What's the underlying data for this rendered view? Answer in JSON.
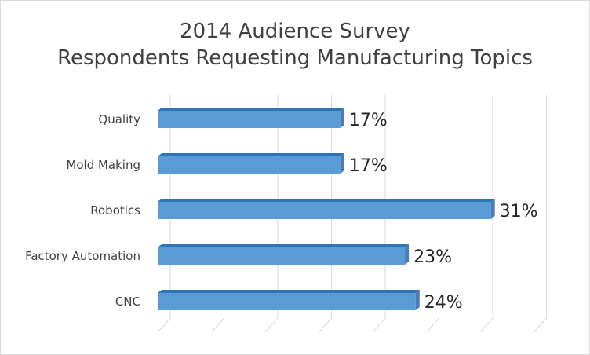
{
  "chart_data": {
    "type": "bar",
    "orientation": "horizontal",
    "title": [
      "2014 Audience Survey",
      "Respondents Requesting Manufacturing Topics"
    ],
    "categories": [
      "Quality",
      "Mold Making",
      "Robotics",
      "Factory Automation",
      "CNC"
    ],
    "values": [
      17,
      17,
      31,
      23,
      24
    ],
    "data_labels": [
      "17%",
      "17%",
      "31%",
      "23%",
      "24%"
    ],
    "xlim": [
      0,
      35
    ],
    "grid": true,
    "style": "3d",
    "colors": {
      "bar_front": "#5b9bd5",
      "bar_top": "#2e75b6",
      "bar_side": "#4a7db5",
      "grid": "#d9d9d9"
    }
  }
}
